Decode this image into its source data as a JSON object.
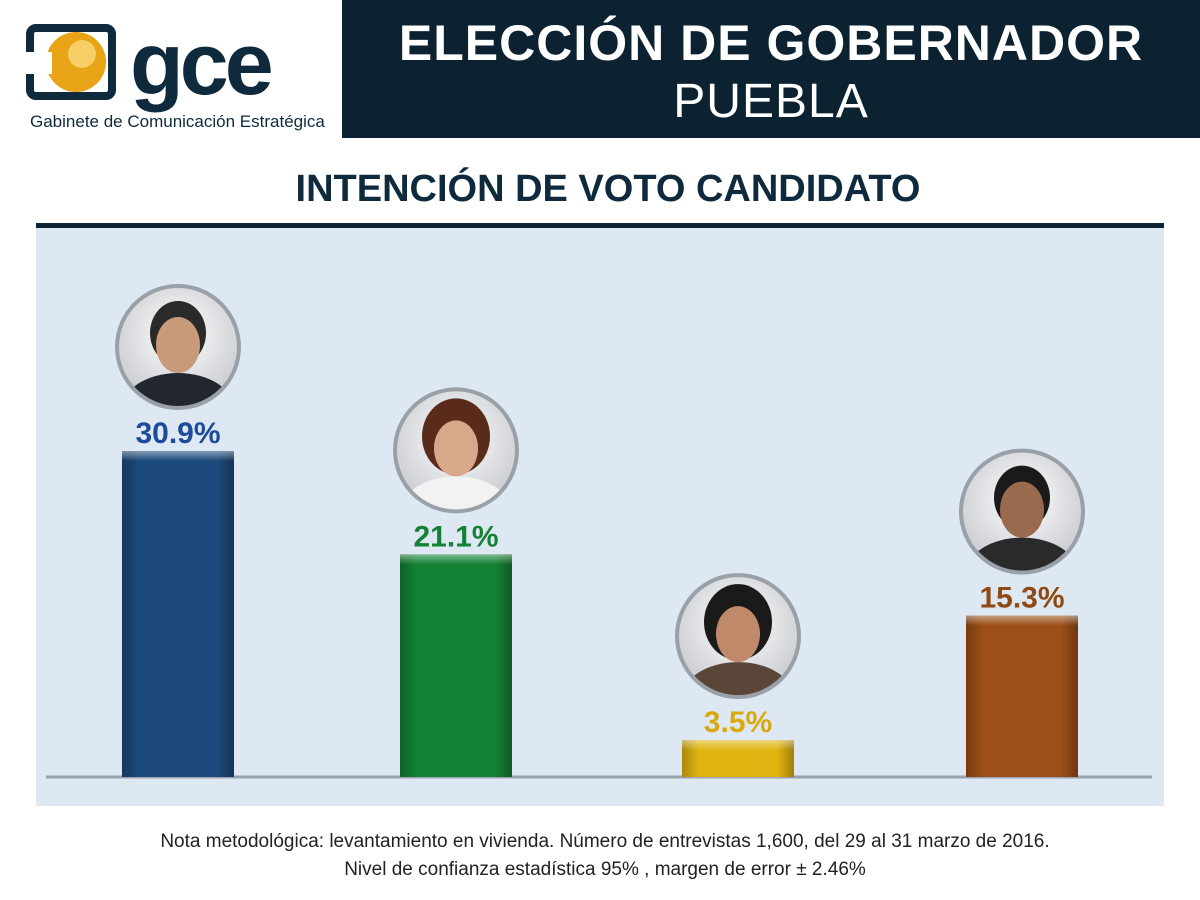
{
  "logo": {
    "wordmark": "gce",
    "subtitle": "Gabinete de Comunicación Estratégica",
    "colors": {
      "gold": "#e8a317",
      "navy": "#0f2a3d"
    }
  },
  "header": {
    "title": "ELECCIÓN DE GOBERNADOR",
    "subtitle": "PUEBLA",
    "background": "#0d2230"
  },
  "chart_data": {
    "type": "bar",
    "title": "INTENCIÓN DE VOTO CANDIDATO",
    "xlabel": "",
    "ylabel": "",
    "ylim": [
      0,
      35
    ],
    "grid": false,
    "legend": "none",
    "categories": [
      "",
      "",
      "",
      ""
    ],
    "values": [
      30.9,
      21.1,
      3.5,
      15.3
    ],
    "labels": [
      "30.9%",
      "21.1%",
      "3.5%",
      "15.3%"
    ],
    "colors": [
      "#1d4a7c",
      "#138234",
      "#e0b512",
      "#9c4f16"
    ],
    "label_colors": [
      "#1d4a9a",
      "#138234",
      "#d9a90e",
      "#8e4a12"
    ],
    "avatar_icons": [
      "candidate-photo-1",
      "candidate-photo-2",
      "candidate-photo-3",
      "candidate-photo-4"
    ]
  },
  "note": {
    "line1": "Nota metodológica: levantamiento en vivienda. Número de entrevistas 1,600, del 29 al 31 marzo de 2016.",
    "line2": "Nivel de confianza estadística 95% , margen de error ± 2.46%"
  }
}
